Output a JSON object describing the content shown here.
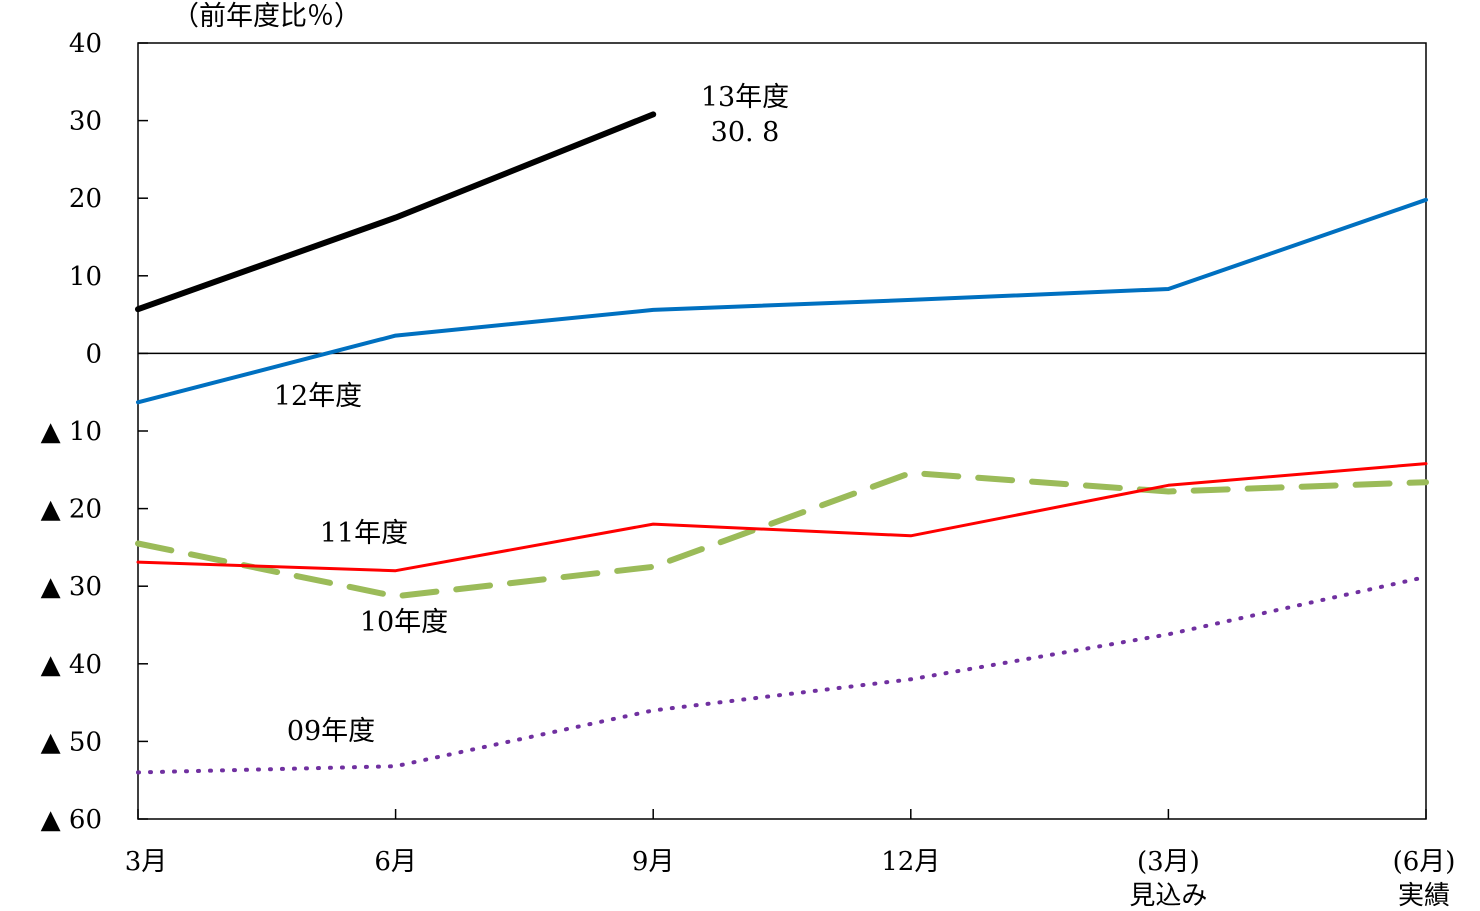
{
  "chart_data": {
    "type": "line",
    "ylabel": "（前年度比％）",
    "ylim": [
      -60,
      40
    ],
    "y_ticks": [
      {
        "value": 40,
        "label": "40"
      },
      {
        "value": 30,
        "label": "30"
      },
      {
        "value": 20,
        "label": "20"
      },
      {
        "value": 10,
        "label": "10"
      },
      {
        "value": 0,
        "label": "0"
      },
      {
        "value": -10,
        "label": "▲ 10"
      },
      {
        "value": -20,
        "label": "▲ 20"
      },
      {
        "value": -30,
        "label": "▲ 30"
      },
      {
        "value": -40,
        "label": "▲ 40"
      },
      {
        "value": -50,
        "label": "▲ 50"
      },
      {
        "value": -60,
        "label": "▲ 60"
      }
    ],
    "categories": [
      {
        "line1": "3月",
        "line2": ""
      },
      {
        "line1": "6月",
        "line2": ""
      },
      {
        "line1": "9月",
        "line2": ""
      },
      {
        "line1": "12月",
        "line2": ""
      },
      {
        "line1": "(3月)",
        "line2": "見込み"
      },
      {
        "line1": "(6月)",
        "line2": "実績"
      }
    ],
    "series": [
      {
        "name": "13年度",
        "color": "#000000",
        "style": "solid-thick",
        "values": [
          5.7,
          17.5,
          30.8,
          null,
          null,
          null
        ]
      },
      {
        "name": "12年度",
        "color": "#0070c0",
        "style": "solid",
        "values": [
          -6.3,
          2.3,
          5.6,
          6.9,
          8.3,
          19.8
        ]
      },
      {
        "name": "11年度",
        "color": "#ff0000",
        "style": "solid-thin",
        "values": [
          -26.9,
          -28.0,
          -22.0,
          -23.5,
          -17.0,
          -14.2
        ]
      },
      {
        "name": "10年度",
        "color": "#9bbb59",
        "style": "dashed",
        "values": [
          -24.5,
          -31.3,
          -27.5,
          -15.4,
          -17.8,
          -16.6
        ]
      },
      {
        "name": "09年度",
        "color": "#7030a0",
        "style": "dotted",
        "values": [
          -54.0,
          -53.2,
          -46.0,
          -42.0,
          -36.2,
          -28.8
        ]
      }
    ],
    "annotations": [
      {
        "text": "13年度",
        "series": "13年度"
      },
      {
        "text": "30. 8",
        "series": "13年度"
      },
      {
        "text": "12年度",
        "series": "12年度"
      },
      {
        "text": "11年度",
        "series": "11年度"
      },
      {
        "text": "10年度",
        "series": "10年度"
      },
      {
        "text": "09年度",
        "series": "09年度"
      }
    ],
    "grid": false
  }
}
